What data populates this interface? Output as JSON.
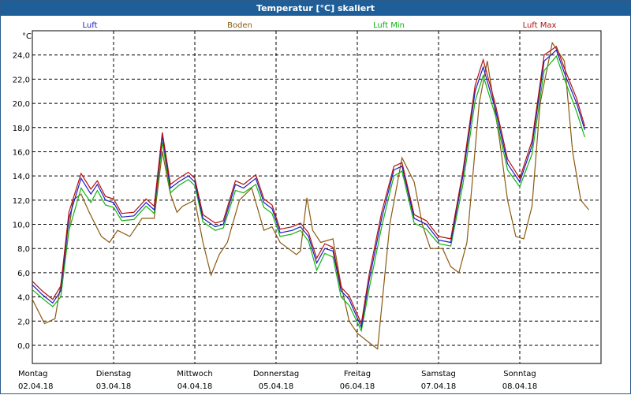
{
  "window": {
    "title": "Temperatur [°C] skaliert"
  },
  "chart_data": {
    "type": "line",
    "title": "Temperatur [°C] skaliert",
    "ylabel": "°C",
    "xlabel": "",
    "ylim": [
      -1.5,
      26.0
    ],
    "xlim": [
      0,
      7.0
    ],
    "grid": true,
    "legend_placement": "top",
    "yticks": [
      "0,0",
      "2,0",
      "4,0",
      "6,0",
      "8,0",
      "10,0",
      "12,0",
      "14,0",
      "16,0",
      "18,0",
      "20,0",
      "22,0",
      "24,0"
    ],
    "x_ticks": [
      {
        "day": "Montag",
        "date": "02.04.18",
        "x": 0
      },
      {
        "day": "Dienstag",
        "date": "03.04.18",
        "x": 1
      },
      {
        "day": "Mittwoch",
        "date": "04.04.18",
        "x": 2
      },
      {
        "day": "Donnerstag",
        "date": "05.04.18",
        "x": 3
      },
      {
        "day": "Freitag",
        "date": "06.04.18",
        "x": 4
      },
      {
        "day": "Samstag",
        "date": "07.04.18",
        "x": 5
      },
      {
        "day": "Sonntag",
        "date": "08.04.18",
        "x": 6
      }
    ],
    "series": [
      {
        "name": "Luft",
        "color": "#1c1cc4",
        "points": [
          [
            0.0,
            5.0
          ],
          [
            0.12,
            4.2
          ],
          [
            0.25,
            3.5
          ],
          [
            0.35,
            4.5
          ],
          [
            0.45,
            10.5
          ],
          [
            0.6,
            13.8
          ],
          [
            0.72,
            12.5
          ],
          [
            0.8,
            13.3
          ],
          [
            0.9,
            12.0
          ],
          [
            1.0,
            11.8
          ],
          [
            1.1,
            10.6
          ],
          [
            1.25,
            10.7
          ],
          [
            1.4,
            11.8
          ],
          [
            1.5,
            11.2
          ],
          [
            1.6,
            17.3
          ],
          [
            1.7,
            13.0
          ],
          [
            1.8,
            13.5
          ],
          [
            1.92,
            14.0
          ],
          [
            2.0,
            13.5
          ],
          [
            2.1,
            10.5
          ],
          [
            2.25,
            9.8
          ],
          [
            2.35,
            10.0
          ],
          [
            2.5,
            13.3
          ],
          [
            2.6,
            13.0
          ],
          [
            2.75,
            13.8
          ],
          [
            2.85,
            11.8
          ],
          [
            2.95,
            11.3
          ],
          [
            3.05,
            9.3
          ],
          [
            3.2,
            9.5
          ],
          [
            3.3,
            9.8
          ],
          [
            3.4,
            9.0
          ],
          [
            3.5,
            6.8
          ],
          [
            3.6,
            8.0
          ],
          [
            3.7,
            7.8
          ],
          [
            3.8,
            4.5
          ],
          [
            3.9,
            3.8
          ],
          [
            4.05,
            1.5
          ],
          [
            4.15,
            5.5
          ],
          [
            4.3,
            10.5
          ],
          [
            4.45,
            14.5
          ],
          [
            4.55,
            14.8
          ],
          [
            4.7,
            10.5
          ],
          [
            4.85,
            10.0
          ],
          [
            5.0,
            8.7
          ],
          [
            5.15,
            8.5
          ],
          [
            5.3,
            14.0
          ],
          [
            5.45,
            21.0
          ],
          [
            5.55,
            23.0
          ],
          [
            5.7,
            19.5
          ],
          [
            5.85,
            15.0
          ],
          [
            6.0,
            13.5
          ],
          [
            6.15,
            16.5
          ],
          [
            6.3,
            23.5
          ],
          [
            6.45,
            24.4
          ],
          [
            6.55,
            22.5
          ],
          [
            6.7,
            20.0
          ],
          [
            6.8,
            17.8
          ]
        ]
      },
      {
        "name": "Boden",
        "color": "#8b5a10",
        "points": [
          [
            0.0,
            3.8
          ],
          [
            0.15,
            1.8
          ],
          [
            0.28,
            2.2
          ],
          [
            0.4,
            7.0
          ],
          [
            0.5,
            12.0
          ],
          [
            0.6,
            12.5
          ],
          [
            0.7,
            11.0
          ],
          [
            0.85,
            9.0
          ],
          [
            0.95,
            8.5
          ],
          [
            1.05,
            9.5
          ],
          [
            1.2,
            9.0
          ],
          [
            1.35,
            10.5
          ],
          [
            1.5,
            10.5
          ],
          [
            1.6,
            16.0
          ],
          [
            1.7,
            12.5
          ],
          [
            1.78,
            11.0
          ],
          [
            1.85,
            11.5
          ],
          [
            2.0,
            12.0
          ],
          [
            2.1,
            8.5
          ],
          [
            2.2,
            5.8
          ],
          [
            2.3,
            7.5
          ],
          [
            2.4,
            8.5
          ],
          [
            2.55,
            12.0
          ],
          [
            2.7,
            13.0
          ],
          [
            2.85,
            9.5
          ],
          [
            2.95,
            9.8
          ],
          [
            3.05,
            8.5
          ],
          [
            3.15,
            8.0
          ],
          [
            3.25,
            7.5
          ],
          [
            3.3,
            7.8
          ],
          [
            3.38,
            12.2
          ],
          [
            3.45,
            9.5
          ],
          [
            3.55,
            8.5
          ],
          [
            3.7,
            8.8
          ],
          [
            3.8,
            5.0
          ],
          [
            3.9,
            2.0
          ],
          [
            4.0,
            1.0
          ],
          [
            4.15,
            0.2
          ],
          [
            4.25,
            -0.3
          ],
          [
            4.4,
            10.0
          ],
          [
            4.55,
            15.5
          ],
          [
            4.7,
            13.5
          ],
          [
            4.8,
            10.0
          ],
          [
            4.9,
            8.0
          ],
          [
            5.05,
            8.0
          ],
          [
            5.15,
            6.5
          ],
          [
            5.25,
            6.0
          ],
          [
            5.35,
            8.5
          ],
          [
            5.5,
            20.0
          ],
          [
            5.6,
            23.5
          ],
          [
            5.75,
            17.0
          ],
          [
            5.85,
            12.0
          ],
          [
            5.95,
            9.0
          ],
          [
            6.05,
            8.8
          ],
          [
            6.15,
            11.5
          ],
          [
            6.25,
            20.0
          ],
          [
            6.4,
            25.0
          ],
          [
            6.55,
            23.5
          ],
          [
            6.65,
            16.0
          ],
          [
            6.75,
            12.0
          ],
          [
            6.85,
            11.2
          ]
        ]
      },
      {
        "name": "Luft Min",
        "color": "#10b410",
        "points": [
          [
            0.0,
            4.6
          ],
          [
            0.12,
            3.9
          ],
          [
            0.25,
            3.2
          ],
          [
            0.35,
            4.0
          ],
          [
            0.45,
            9.5
          ],
          [
            0.6,
            13.0
          ],
          [
            0.72,
            11.8
          ],
          [
            0.8,
            12.8
          ],
          [
            0.9,
            11.6
          ],
          [
            1.0,
            11.4
          ],
          [
            1.1,
            10.3
          ],
          [
            1.25,
            10.4
          ],
          [
            1.4,
            11.5
          ],
          [
            1.5,
            10.9
          ],
          [
            1.6,
            16.8
          ],
          [
            1.7,
            12.6
          ],
          [
            1.8,
            13.2
          ],
          [
            1.92,
            13.7
          ],
          [
            2.0,
            13.2
          ],
          [
            2.1,
            10.2
          ],
          [
            2.25,
            9.5
          ],
          [
            2.35,
            9.7
          ],
          [
            2.5,
            12.8
          ],
          [
            2.6,
            12.6
          ],
          [
            2.75,
            13.3
          ],
          [
            2.85,
            11.4
          ],
          [
            2.95,
            10.9
          ],
          [
            3.05,
            9.0
          ],
          [
            3.2,
            9.2
          ],
          [
            3.3,
            9.5
          ],
          [
            3.4,
            8.6
          ],
          [
            3.5,
            6.2
          ],
          [
            3.6,
            7.6
          ],
          [
            3.7,
            7.3
          ],
          [
            3.8,
            4.0
          ],
          [
            3.9,
            3.3
          ],
          [
            4.05,
            1.2
          ],
          [
            4.15,
            4.8
          ],
          [
            4.3,
            9.8
          ],
          [
            4.45,
            14.0
          ],
          [
            4.55,
            14.4
          ],
          [
            4.7,
            10.1
          ],
          [
            4.85,
            9.6
          ],
          [
            5.0,
            8.4
          ],
          [
            5.15,
            8.2
          ],
          [
            5.3,
            13.3
          ],
          [
            5.45,
            20.2
          ],
          [
            5.55,
            22.3
          ],
          [
            5.7,
            19.0
          ],
          [
            5.85,
            14.5
          ],
          [
            6.0,
            13.1
          ],
          [
            6.15,
            15.8
          ],
          [
            6.3,
            22.7
          ],
          [
            6.45,
            23.9
          ],
          [
            6.55,
            22.0
          ],
          [
            6.7,
            19.3
          ],
          [
            6.8,
            17.2
          ]
        ]
      },
      {
        "name": "Luft Max",
        "color": "#b41010",
        "points": [
          [
            0.0,
            5.3
          ],
          [
            0.12,
            4.5
          ],
          [
            0.25,
            3.8
          ],
          [
            0.35,
            4.9
          ],
          [
            0.45,
            11.0
          ],
          [
            0.6,
            14.2
          ],
          [
            0.72,
            12.9
          ],
          [
            0.8,
            13.6
          ],
          [
            0.9,
            12.3
          ],
          [
            1.0,
            12.1
          ],
          [
            1.1,
            10.9
          ],
          [
            1.25,
            11.0
          ],
          [
            1.4,
            12.1
          ],
          [
            1.5,
            11.5
          ],
          [
            1.6,
            17.6
          ],
          [
            1.7,
            13.3
          ],
          [
            1.8,
            13.8
          ],
          [
            1.92,
            14.3
          ],
          [
            2.0,
            13.8
          ],
          [
            2.1,
            10.8
          ],
          [
            2.25,
            10.1
          ],
          [
            2.35,
            10.3
          ],
          [
            2.5,
            13.6
          ],
          [
            2.6,
            13.3
          ],
          [
            2.75,
            14.1
          ],
          [
            2.85,
            12.1
          ],
          [
            2.95,
            11.6
          ],
          [
            3.05,
            9.6
          ],
          [
            3.2,
            9.8
          ],
          [
            3.3,
            10.1
          ],
          [
            3.4,
            9.3
          ],
          [
            3.5,
            7.2
          ],
          [
            3.6,
            8.4
          ],
          [
            3.7,
            8.1
          ],
          [
            3.8,
            4.8
          ],
          [
            3.9,
            4.1
          ],
          [
            4.05,
            1.8
          ],
          [
            4.15,
            6.0
          ],
          [
            4.3,
            11.0
          ],
          [
            4.45,
            14.8
          ],
          [
            4.55,
            15.1
          ],
          [
            4.7,
            10.8
          ],
          [
            4.85,
            10.3
          ],
          [
            5.0,
            9.0
          ],
          [
            5.15,
            8.8
          ],
          [
            5.3,
            14.4
          ],
          [
            5.45,
            21.5
          ],
          [
            5.55,
            23.6
          ],
          [
            5.7,
            19.9
          ],
          [
            5.85,
            15.4
          ],
          [
            6.0,
            13.8
          ],
          [
            6.15,
            16.9
          ],
          [
            6.3,
            24.0
          ],
          [
            6.45,
            24.7
          ],
          [
            6.55,
            22.9
          ],
          [
            6.7,
            20.4
          ],
          [
            6.8,
            18.1
          ]
        ]
      }
    ]
  }
}
